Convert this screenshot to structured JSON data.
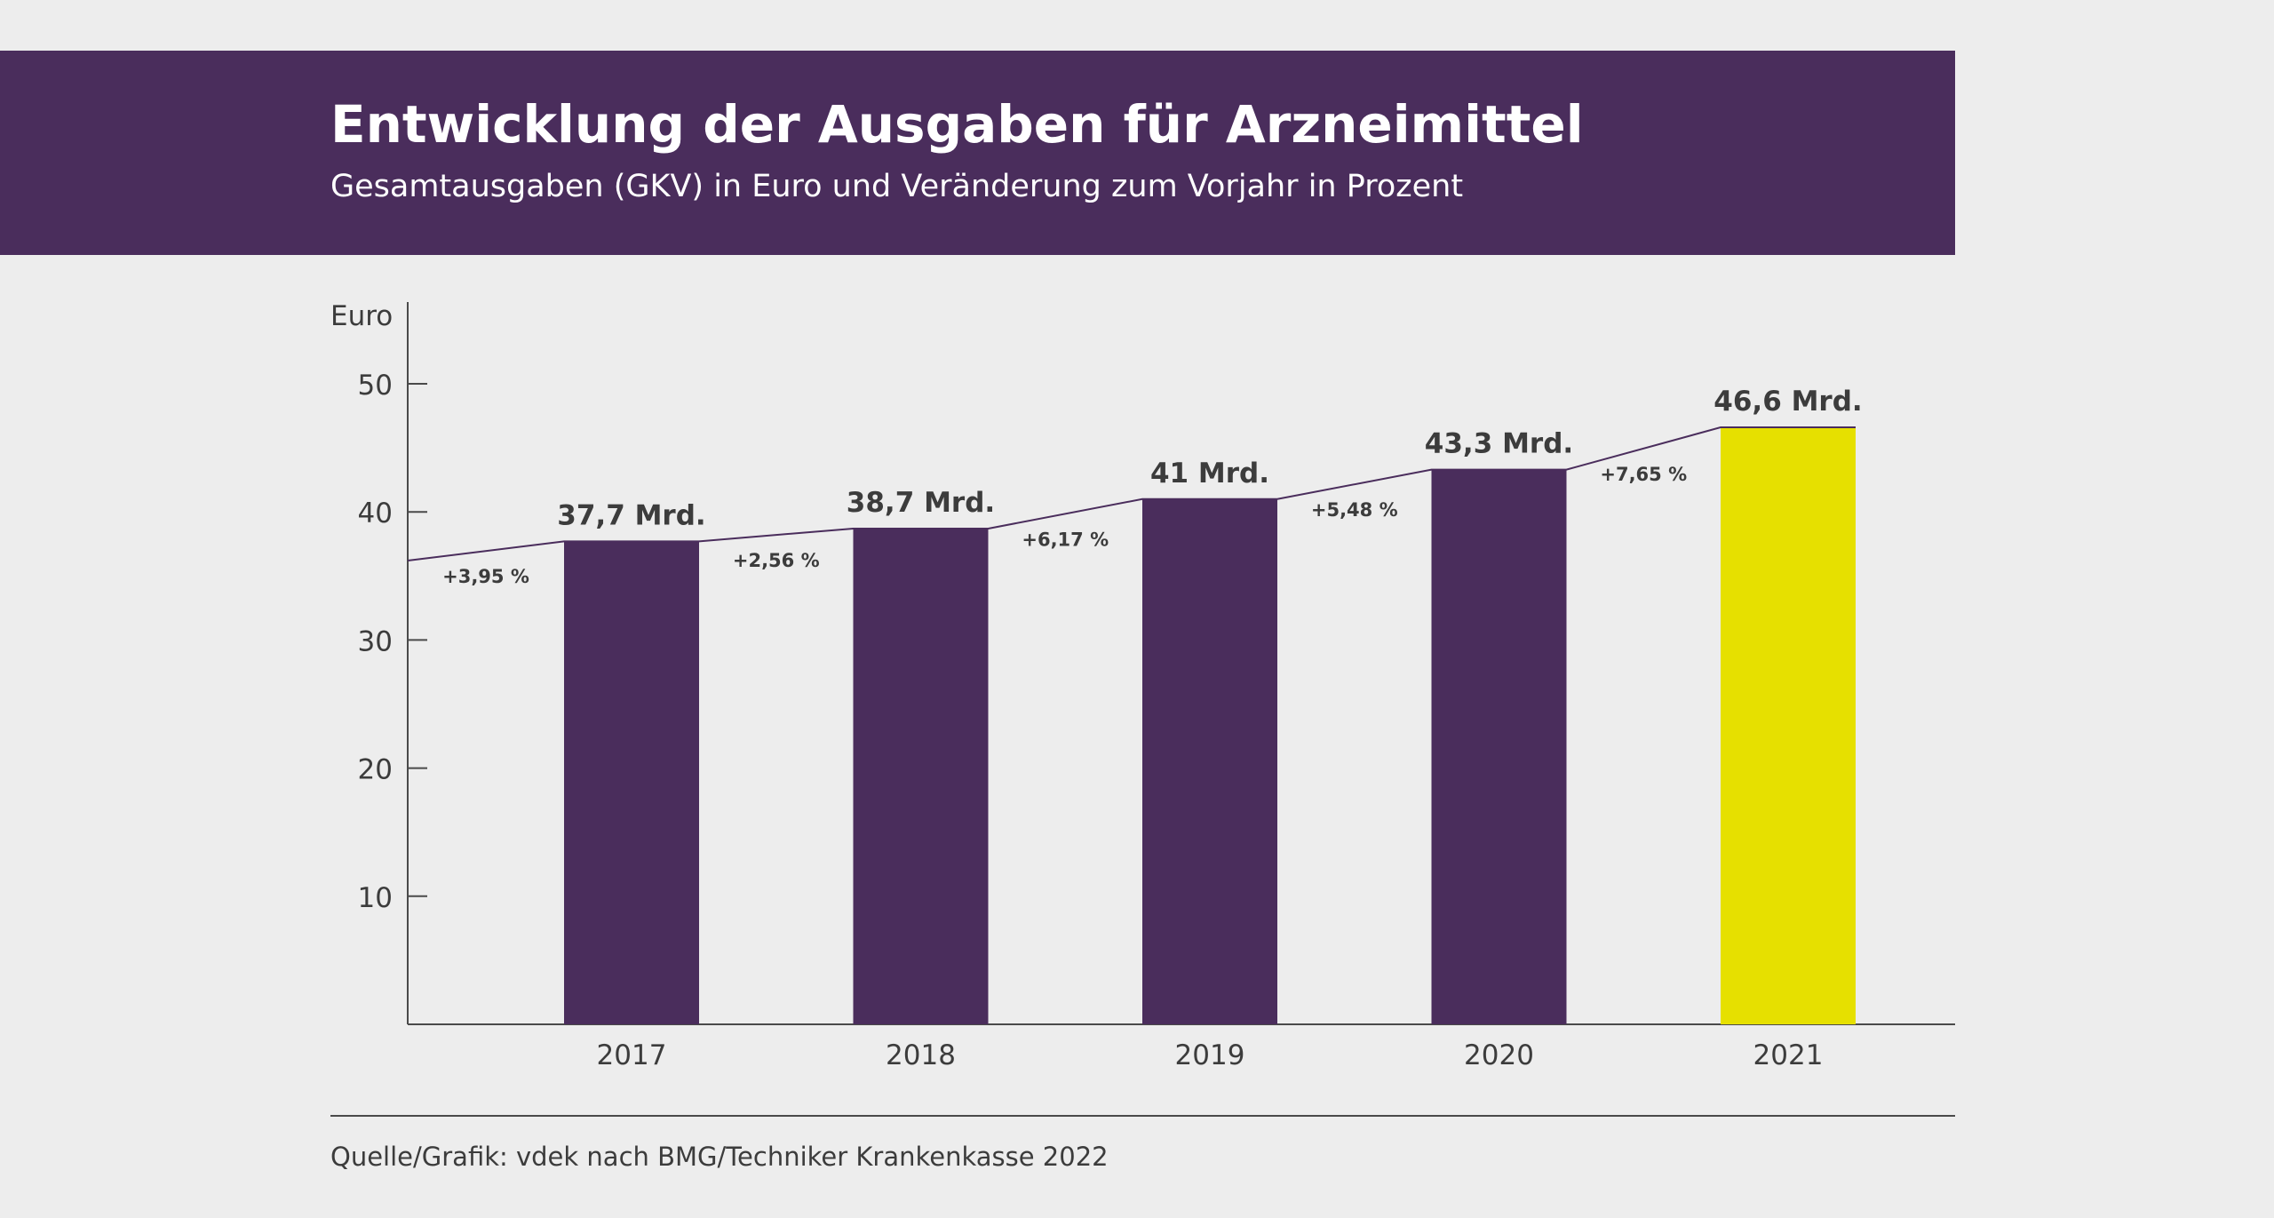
{
  "header": {
    "title": "Entwicklung der Ausgaben für Arzneimittel",
    "subtitle": "Gesamtausgaben (GKV) in Euro und Veränderung zum Vorjahr in Prozent"
  },
  "footer": {
    "source": "Quelle/Grafik: vdek nach BMG/Techniker Krankenkasse 2022"
  },
  "colors": {
    "header_bg": "#4a2d5c",
    "bar": "#4a2d5c",
    "highlight_bar": "#e6e000",
    "background": "#ededed",
    "text": "#3c3c3c"
  },
  "chart_data": {
    "type": "bar",
    "title": "Entwicklung der Ausgaben für Arzneimittel",
    "subtitle": "Gesamtausgaben (GKV) in Euro und Veränderung zum Vorjahr in Prozent",
    "ylabel": "Euro",
    "xlabel": "",
    "ylim": [
      0,
      55
    ],
    "yticks": [
      10,
      20,
      30,
      40,
      50
    ],
    "grid": false,
    "categories": [
      "2017",
      "2018",
      "2019",
      "2020",
      "2021"
    ],
    "values": [
      37.7,
      38.7,
      41,
      43.3,
      46.6
    ],
    "value_labels": [
      "37,7 Mrd.",
      "38,7 Mrd.",
      "41 Mrd.",
      "43,3 Mrd.",
      "46,6 Mrd."
    ],
    "highlight": "2021",
    "change_labels": [
      "+3,95 %",
      "+2,56 %",
      "+6,17 %",
      "+5,48 %",
      "+7,65 %"
    ]
  }
}
